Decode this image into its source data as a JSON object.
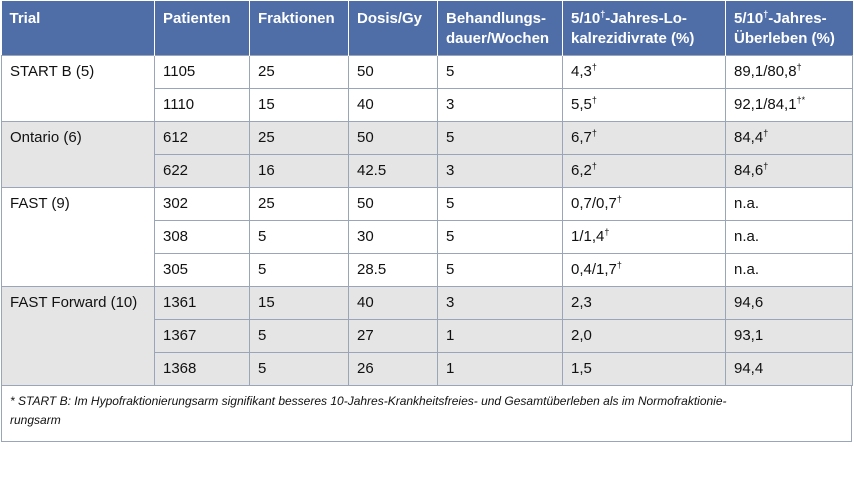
{
  "headers": {
    "trial": "Trial",
    "patienten": "Patienten",
    "fraktionen": "Fraktionen",
    "dosis": "Dosis/Gy",
    "dauer_1": "Behandlungs-",
    "dauer_2": "dauer/Wochen",
    "lokal_1": "5/10",
    "lokal_sup": "†",
    "lokal_2": "-Jahres-Lo-",
    "lokal_3": "kalrezidivrate (%)",
    "ueber_1": "5/10",
    "ueber_sup": "†",
    "ueber_2": "-Jahres-",
    "ueber_3": "Überleben (%)"
  },
  "rows": [
    {
      "trial": "START B (5)",
      "patienten": "1105",
      "fraktionen": "25",
      "dosis": "50",
      "dauer": "5",
      "lokal": "4,3",
      "lokal_sup": "†",
      "ueber": "89,1/80,8",
      "ueber_sup": "†"
    },
    {
      "trial": "",
      "patienten": "1110",
      "fraktionen": "15",
      "dosis": "40",
      "dauer": "3",
      "lokal": "5,5",
      "lokal_sup": "†",
      "ueber": "92,1/84,1",
      "ueber_sup": "†*"
    },
    {
      "trial": "Ontario (6)",
      "patienten": "612",
      "fraktionen": "25",
      "dosis": "50",
      "dauer": "5",
      "lokal": "6,7",
      "lokal_sup": "†",
      "ueber": "84,4",
      "ueber_sup": "†"
    },
    {
      "trial": "",
      "patienten": "622",
      "fraktionen": "16",
      "dosis": "42.5",
      "dauer": "3",
      "lokal": "6,2",
      "lokal_sup": "†",
      "ueber": "84,6",
      "ueber_sup": "†"
    },
    {
      "trial": "FAST (9)",
      "patienten": "302",
      "fraktionen": "25",
      "dosis": "50",
      "dauer": "5",
      "lokal": "0,7/0,7",
      "lokal_sup": "†",
      "ueber": "n.a.",
      "ueber_sup": ""
    },
    {
      "trial": "",
      "patienten": "308",
      "fraktionen": "5",
      "dosis": "30",
      "dauer": "5",
      "lokal": "1/1,4",
      "lokal_sup": "†",
      "ueber": "n.a.",
      "ueber_sup": ""
    },
    {
      "trial": "",
      "patienten": "305",
      "fraktionen": "5",
      "dosis": "28.5",
      "dauer": "5",
      "lokal": "0,4/1,7",
      "lokal_sup": "†",
      "ueber": "n.a.",
      "ueber_sup": ""
    },
    {
      "trial": "FAST Forward (10)",
      "patienten": "1361",
      "fraktionen": "15",
      "dosis": "40",
      "dauer": "3",
      "lokal": "2,3",
      "lokal_sup": "",
      "ueber": "94,6",
      "ueber_sup": ""
    },
    {
      "trial": "",
      "patienten": "1367",
      "fraktionen": "5",
      "dosis": "27",
      "dauer": "1",
      "lokal": "2,0",
      "lokal_sup": "",
      "ueber": "93,1",
      "ueber_sup": ""
    },
    {
      "trial": "",
      "patienten": "1368",
      "fraktionen": "5",
      "dosis": "26",
      "dauer": "1",
      "lokal": "1,5",
      "lokal_sup": "",
      "ueber": "94,4",
      "ueber_sup": ""
    }
  ],
  "footnote": "* START B: Im Hypofraktionierungsarm signifikant besseres 10-Jahres-Krankheitsfreies- und Gesamtüberleben als im Normofraktionie-rungsarm",
  "footnote_line1": "* START B: Im Hypofraktionierungsarm signifikant besseres 10-Jahres-Krankheitsfreies- und Gesamtüberleben als im Normofraktionie-",
  "footnote_line2": "rungsarm",
  "colors": {
    "header_bg": "#4f6ea8",
    "shade": "#e5e5e5",
    "border": "#9aa5b8"
  }
}
